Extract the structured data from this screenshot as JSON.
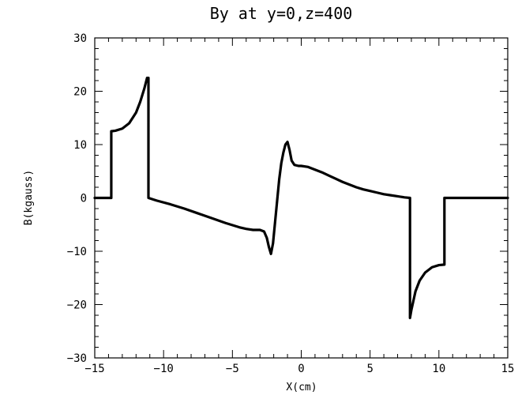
{
  "chart_data": {
    "type": "line",
    "title": "By at y=0,z=400",
    "xlabel": "X(cm)",
    "ylabel": "B(kgauss)",
    "xlim": [
      -15,
      15
    ],
    "ylim": [
      -30,
      30
    ],
    "x_ticks": [
      -15,
      -10,
      -5,
      0,
      5,
      10,
      15
    ],
    "y_ticks": [
      -30,
      -20,
      -10,
      0,
      10,
      20,
      30
    ],
    "x_tick_labels": [
      "−15",
      "−10",
      "−5",
      "0",
      "5",
      "10",
      "15"
    ],
    "y_tick_labels": [
      "−30",
      "−20",
      "−10",
      "0",
      "10",
      "20",
      "30"
    ],
    "grid": false,
    "line_color": "#000000",
    "series": [
      {
        "x": [
          -15,
          -13.8,
          -13.8,
          -13.5,
          -13.0,
          -12.5,
          -12.0,
          -11.7,
          -11.4,
          -11.2,
          -11.1,
          -11.1,
          -10.5,
          -9.5,
          -8.5,
          -7.5,
          -6.5,
          -5.5,
          -4.5,
          -4.0,
          -3.5,
          -3.0,
          -2.7,
          -2.5,
          -2.35,
          -2.2,
          -2.05,
          -1.9,
          -1.75,
          -1.6,
          -1.45,
          -1.3,
          -1.15,
          -1.0,
          -0.85,
          -0.7,
          -0.5,
          -0.2,
          0.0,
          0.5,
          1.0,
          1.5,
          2.0,
          2.5,
          3.0,
          3.5,
          4.0,
          4.5,
          5.0,
          5.5,
          6.0,
          6.5,
          7.0,
          7.5,
          7.9,
          7.9,
          8.0,
          8.3,
          8.6,
          9.0,
          9.5,
          10.0,
          10.4,
          10.4,
          11.0,
          12.0,
          13.0,
          14.0,
          15.0
        ],
        "y": [
          0,
          0,
          12.5,
          12.6,
          13.0,
          14.0,
          16.0,
          18.0,
          20.5,
          22.5,
          22.5,
          0,
          -0.5,
          -1.2,
          -2.0,
          -2.9,
          -3.8,
          -4.7,
          -5.5,
          -5.8,
          -6.0,
          -6.0,
          -6.3,
          -7.5,
          -9.2,
          -10.5,
          -8.5,
          -4.5,
          -0.5,
          3.5,
          6.5,
          8.5,
          10.0,
          10.5,
          9.0,
          7.0,
          6.2,
          6.0,
          6.0,
          5.8,
          5.3,
          4.8,
          4.2,
          3.6,
          3.0,
          2.5,
          2.0,
          1.6,
          1.3,
          1.0,
          0.7,
          0.5,
          0.3,
          0.1,
          0,
          -22.5,
          -21.0,
          -17.5,
          -15.5,
          -14.0,
          -13.0,
          -12.6,
          -12.5,
          0,
          0,
          0,
          0,
          0,
          0
        ]
      }
    ]
  }
}
